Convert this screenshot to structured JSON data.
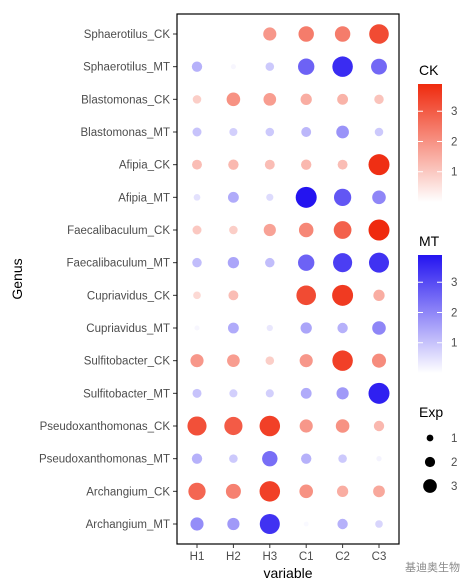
{
  "chart_data": {
    "type": "scatter",
    "xlabel": "variable",
    "ylabel": "Genus",
    "x_categories": [
      "H1",
      "H2",
      "H3",
      "C1",
      "C2",
      "C3"
    ],
    "y_categories": [
      "Sphaerotilus_CK",
      "Sphaerotilus_MT",
      "Blastomonas_CK",
      "Blastomonas_MT",
      "Afipia_CK",
      "Afipia_MT",
      "Faecalibaculum_CK",
      "Faecalibaculum_MT",
      "Cupriavidus_CK",
      "Cupriavidus_MT",
      "Sulfitobacter_CK",
      "Sulfitobacter_MT",
      "Pseudoxanthomonas_CK",
      "Pseudoxanthomonas_MT",
      "Archangium_CK",
      "Archangium_MT"
    ],
    "values": [
      [
        0.0,
        0.0,
        1.9,
        2.4,
        2.4,
        3.3
      ],
      [
        1.3,
        0.15,
        0.9,
        2.6,
        3.5,
        2.5
      ],
      [
        0.9,
        2.0,
        1.8,
        1.5,
        1.4,
        1.1
      ],
      [
        1.0,
        0.8,
        0.9,
        1.2,
        1.8,
        0.9
      ],
      [
        1.2,
        1.3,
        1.2,
        1.3,
        1.2,
        3.8
      ],
      [
        0.5,
        1.4,
        0.6,
        3.9,
        2.8,
        2.0
      ],
      [
        1.0,
        0.9,
        1.7,
        2.2,
        2.9,
        3.9
      ],
      [
        1.1,
        1.5,
        1.1,
        2.6,
        3.2,
        3.4
      ],
      [
        0.7,
        1.2,
        0.0,
        3.3,
        3.6,
        1.5
      ],
      [
        0.15,
        1.4,
        0.4,
        1.5,
        1.3,
        2.0
      ],
      [
        1.9,
        1.8,
        0.9,
        1.9,
        3.5,
        2.1
      ],
      [
        1.0,
        0.8,
        0.8,
        1.4,
        1.7,
        3.7
      ],
      [
        3.2,
        3.0,
        3.5,
        1.9,
        2.0,
        1.3
      ],
      [
        1.3,
        0.9,
        2.4,
        1.3,
        0.9,
        0.2
      ],
      [
        2.8,
        2.3,
        3.5,
        2.0,
        1.5,
        1.6
      ],
      [
        1.9,
        1.7,
        3.4,
        0.1,
        1.3,
        0.7
      ]
    ],
    "legend_ck": {
      "title": "CK",
      "ticks": [
        1,
        2,
        3
      ],
      "range": [
        0,
        3.9
      ],
      "low_color": "#ffffff",
      "high_color": "#ef2a0e"
    },
    "legend_mt": {
      "title": "MT",
      "ticks": [
        1,
        2,
        3
      ],
      "range": [
        0,
        3.9
      ],
      "low_color": "#ffffff",
      "high_color": "#2414f0"
    },
    "legend_exp": {
      "title": "Exp",
      "values": [
        1,
        2,
        3
      ]
    },
    "grid": false,
    "legend_position": "right"
  },
  "watermark": "基迪奥生物"
}
